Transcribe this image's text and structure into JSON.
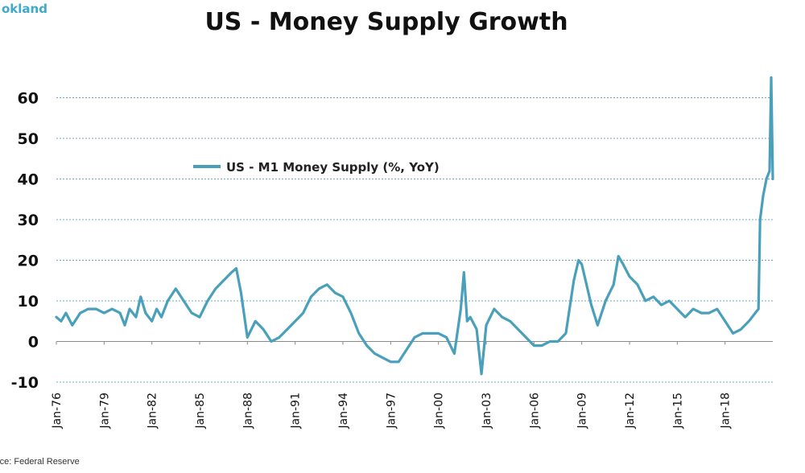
{
  "logo_text": "okland",
  "title": "US - Money Supply Growth",
  "source": "rce: Federal Reserve",
  "colors": {
    "series": "#4aa0bb",
    "grid": "#6eaebe",
    "text": "#111111"
  },
  "chart_data": {
    "type": "line",
    "title": "US - Money Supply Growth",
    "xlabel": "",
    "ylabel": "",
    "ylim": [
      -10,
      65
    ],
    "yticks": [
      -10,
      0,
      10,
      20,
      30,
      40,
      50,
      60
    ],
    "xlim": [
      1976.0,
      2021.0
    ],
    "xtick_values": [
      1976,
      1979,
      1982,
      1985,
      1988,
      1991,
      1994,
      1997,
      2000,
      2003,
      2006,
      2009,
      2012,
      2015,
      2018
    ],
    "xtick_labels": [
      "Jan-76",
      "Jan-79",
      "Jan-82",
      "Jan-85",
      "Jan-88",
      "Jan-91",
      "Jan-94",
      "Jan-97",
      "Jan-00",
      "Jan-03",
      "Jan-06",
      "Jan-09",
      "Jan-12",
      "Jan-15",
      "Jan-18"
    ],
    "legend": "top-left",
    "grid": true,
    "series": [
      {
        "name": "US - M1 Money Supply (%, YoY)",
        "x": [
          1976.0,
          1976.3,
          1976.6,
          1977.0,
          1977.5,
          1978.0,
          1978.5,
          1979.0,
          1979.5,
          1980.0,
          1980.3,
          1980.6,
          1981.0,
          1981.3,
          1981.6,
          1982.0,
          1982.3,
          1982.6,
          1983.0,
          1983.5,
          1984.0,
          1984.5,
          1985.0,
          1985.5,
          1986.0,
          1986.5,
          1987.0,
          1987.3,
          1987.6,
          1988.0,
          1988.5,
          1989.0,
          1989.5,
          1990.0,
          1990.5,
          1991.0,
          1991.5,
          1992.0,
          1992.5,
          1993.0,
          1993.5,
          1994.0,
          1994.5,
          1995.0,
          1995.5,
          1996.0,
          1996.5,
          1997.0,
          1997.5,
          1998.0,
          1998.5,
          1999.0,
          1999.5,
          2000.0,
          2000.5,
          2001.0,
          2001.4,
          2001.6,
          2001.8,
          2002.0,
          2002.4,
          2002.7,
          2003.0,
          2003.5,
          2004.0,
          2004.5,
          2005.0,
          2005.5,
          2006.0,
          2006.5,
          2007.0,
          2007.5,
          2008.0,
          2008.5,
          2008.8,
          2009.0,
          2009.3,
          2009.6,
          2010.0,
          2010.5,
          2011.0,
          2011.3,
          2011.6,
          2012.0,
          2012.5,
          2013.0,
          2013.5,
          2014.0,
          2014.5,
          2015.0,
          2015.5,
          2016.0,
          2016.5,
          2017.0,
          2017.5,
          2018.0,
          2018.5,
          2019.0,
          2019.5,
          2019.9,
          2020.1,
          2020.2,
          2020.4,
          2020.6,
          2020.8,
          2020.9,
          2021.0
        ],
        "values": [
          6,
          5,
          7,
          4,
          7,
          8,
          8,
          7,
          8,
          7,
          4,
          8,
          6,
          11,
          7,
          5,
          8,
          6,
          10,
          13,
          10,
          7,
          6,
          10,
          13,
          15,
          17,
          18,
          12,
          1,
          5,
          3,
          0,
          1,
          3,
          5,
          7,
          11,
          13,
          14,
          12,
          11,
          7,
          2,
          -1,
          -3,
          -4,
          -5,
          -5,
          -2,
          1,
          2,
          2,
          2,
          1,
          -3,
          8,
          17,
          5,
          6,
          3,
          -8,
          4,
          8,
          6,
          5,
          3,
          1,
          -1,
          -1,
          0,
          0,
          2,
          15,
          20,
          19,
          14,
          9,
          4,
          10,
          14,
          21,
          19,
          16,
          14,
          10,
          11,
          9,
          10,
          8,
          6,
          8,
          7,
          7,
          8,
          5,
          2,
          3,
          5,
          7,
          8,
          30,
          36,
          40,
          42,
          65,
          40
        ]
      }
    ]
  }
}
